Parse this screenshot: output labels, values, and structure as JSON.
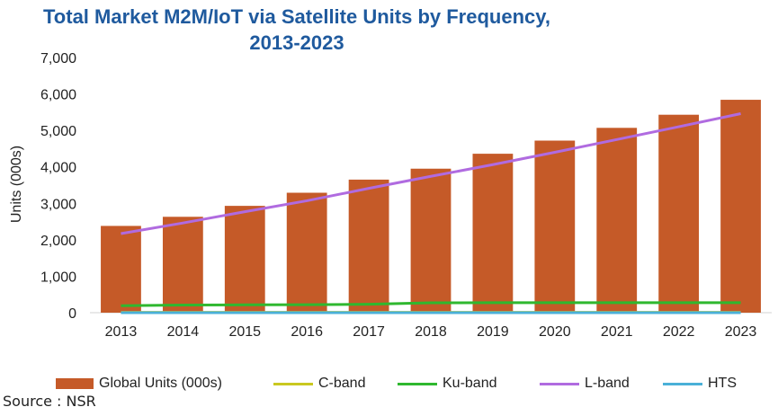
{
  "chart_data": {
    "type": "bar",
    "title_lines": [
      "Total Market M2M/IoT via Satellite Units by Frequency,",
      "2013-2023"
    ],
    "xlabel": "",
    "ylabel": "Units (000s)",
    "ylim": [
      0,
      7000
    ],
    "yticks": [
      "7,000",
      "6,000",
      "5,000",
      "4,000",
      "3,000",
      "2,000",
      "1,000",
      "0"
    ],
    "grid": false,
    "legend_position": "bottom",
    "categories": [
      "2013",
      "2014",
      "2015",
      "2016",
      "2017",
      "2018",
      "2019",
      "2020",
      "2021",
      "2022",
      "2023"
    ],
    "series": [
      {
        "name": "Global Units (000s)",
        "kind": "bar",
        "color": "#c55a28",
        "values": [
          2380,
          2630,
          2930,
          3290,
          3650,
          3950,
          4360,
          4720,
          5070,
          5430,
          5840
        ]
      },
      {
        "name": "C-band",
        "kind": "line",
        "color": "#c9c820",
        "values": [
          10,
          10,
          10,
          10,
          10,
          10,
          10,
          10,
          10,
          10,
          10
        ]
      },
      {
        "name": "Ku-band",
        "kind": "line",
        "color": "#2fb82f",
        "values": [
          190,
          210,
          215,
          220,
          230,
          270,
          275,
          275,
          275,
          275,
          275
        ]
      },
      {
        "name": "L-band",
        "kind": "line",
        "color": "#b06be0",
        "values": [
          2170,
          2460,
          2770,
          3070,
          3410,
          3740,
          4060,
          4400,
          4750,
          5100,
          5460
        ]
      },
      {
        "name": "HTS",
        "kind": "line",
        "color": "#4ab0d8",
        "values": [
          0,
          0,
          0,
          0,
          0,
          0,
          0,
          0,
          0,
          0,
          0
        ]
      }
    ]
  },
  "source_text": "Source : NSR"
}
